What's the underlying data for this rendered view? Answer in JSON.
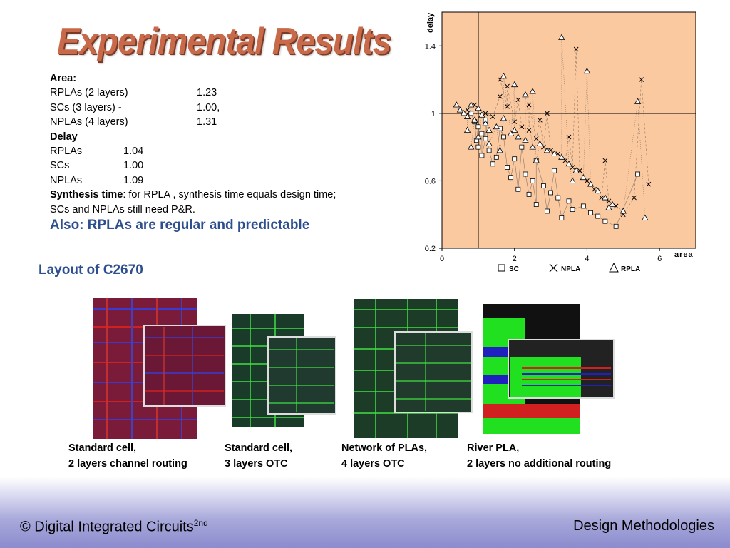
{
  "slide": {
    "title": "Experimental Results",
    "stats": {
      "area_heading": "Area:",
      "area_rows": [
        {
          "label": "RPLAs (2 layers)",
          "value": "1.23"
        },
        {
          "label": "SCs (3 layers) -",
          "value": "1.00,"
        },
        {
          "label": "NPLAs (4 layers)",
          "value": "1.31"
        }
      ],
      "delay_heading": "Delay",
      "delay_rows": [
        {
          "label": "RPLAs",
          "value": "1.04"
        },
        {
          "label": "SCs",
          "value": "1.00"
        },
        {
          "label": "NPLAs",
          "value": "1.09"
        }
      ],
      "synthesis_bold": "Synthesis time",
      "synthesis_rest": ": for RPLA , synthesis time equals design time;",
      "synthesis_line2": "SCs and NPLAs still need P&R."
    },
    "also": "Also: RPLAs are regular and predictable",
    "layout_title": "Layout of C2670",
    "captions": [
      {
        "line1": "Standard cell,",
        "line2": "2 layers channel routing"
      },
      {
        "line1": "Standard cell,",
        "line2": "3 layers OTC"
      },
      {
        "line1": "Network of PLAs,",
        "line2": "4 layers OTC"
      },
      {
        "line1": "River PLA,",
        "line2": "2 layers no additional routing"
      }
    ],
    "footer": {
      "left_text": "© Digital Integrated Circuits",
      "left_sup": "2nd",
      "right_text": "Design Methodologies"
    }
  },
  "chart_data": {
    "type": "scatter",
    "xlabel": "area",
    "ylabel": "delay",
    "xlim": [
      0,
      7
    ],
    "ylim": [
      0.2,
      1.6
    ],
    "xticks": [
      0,
      2,
      4,
      6
    ],
    "yticks": [
      0.2,
      0.6,
      1,
      1.4
    ],
    "xtick_labels": [
      "0",
      "2",
      "4",
      "6"
    ],
    "ytick_labels": [
      "0.2",
      "0.6",
      "1",
      "1.4"
    ],
    "reference_lines": {
      "x": 1,
      "y": 1
    },
    "background": "#fbc9a0",
    "legend": {
      "placement": "bottom",
      "entries": [
        "SC",
        "NPLA",
        "RPLA"
      ]
    },
    "series": [
      {
        "name": "SC",
        "marker": "square",
        "values": [
          [
            0.8,
            1.0
          ],
          [
            0.9,
            0.95
          ],
          [
            1.0,
            0.92
          ],
          [
            1.1,
            0.88
          ],
          [
            1.2,
            0.85
          ],
          [
            1.0,
            0.8
          ],
          [
            1.1,
            0.75
          ],
          [
            1.3,
            0.78
          ],
          [
            1.5,
            0.74
          ],
          [
            1.4,
            0.7
          ],
          [
            1.8,
            0.68
          ],
          [
            2.0,
            0.73
          ],
          [
            1.9,
            0.62
          ],
          [
            2.3,
            0.64
          ],
          [
            2.5,
            0.6
          ],
          [
            2.1,
            0.55
          ],
          [
            2.4,
            0.52
          ],
          [
            2.8,
            0.57
          ],
          [
            3.0,
            0.53
          ],
          [
            3.2,
            0.5
          ],
          [
            2.6,
            0.46
          ],
          [
            3.5,
            0.48
          ],
          [
            3.9,
            0.45
          ],
          [
            3.6,
            0.43
          ],
          [
            4.1,
            0.41
          ],
          [
            4.3,
            0.39
          ],
          [
            2.9,
            0.42
          ],
          [
            3.3,
            0.38
          ],
          [
            4.5,
            0.36
          ],
          [
            4.8,
            0.33
          ],
          [
            1.7,
            0.86
          ],
          [
            1.6,
            0.91
          ],
          [
            2.2,
            0.8
          ],
          [
            2.6,
            0.72
          ],
          [
            3.1,
            0.66
          ],
          [
            5.4,
            0.64
          ],
          [
            1.2,
            0.96
          ],
          [
            0.95,
            0.84
          ]
        ]
      },
      {
        "name": "NPLA",
        "marker": "x",
        "values": [
          [
            0.7,
            1.02
          ],
          [
            0.9,
            1.05
          ],
          [
            1.2,
            1.0
          ],
          [
            1.4,
            0.98
          ],
          [
            1.6,
            1.1
          ],
          [
            1.8,
            1.04
          ],
          [
            2.0,
            0.95
          ],
          [
            2.2,
            0.92
          ],
          [
            2.4,
            0.9
          ],
          [
            2.6,
            0.85
          ],
          [
            2.8,
            0.8
          ],
          [
            3.0,
            0.78
          ],
          [
            3.2,
            0.76
          ],
          [
            3.4,
            0.72
          ],
          [
            3.6,
            0.68
          ],
          [
            3.8,
            0.66
          ],
          [
            4.0,
            0.6
          ],
          [
            4.2,
            0.55
          ],
          [
            4.4,
            0.5
          ],
          [
            4.6,
            0.48
          ],
          [
            4.8,
            0.45
          ],
          [
            5.0,
            0.4
          ],
          [
            5.7,
            0.58
          ],
          [
            5.3,
            0.5
          ],
          [
            3.7,
            1.38
          ],
          [
            5.5,
            1.2
          ],
          [
            1.6,
            1.2
          ],
          [
            1.8,
            1.16
          ],
          [
            2.4,
            1.05
          ],
          [
            2.9,
            1.0
          ],
          [
            3.5,
            0.86
          ],
          [
            4.5,
            0.72
          ],
          [
            2.1,
            1.08
          ],
          [
            2.7,
            0.96
          ]
        ]
      },
      {
        "name": "RPLA",
        "marker": "triangle",
        "values": [
          [
            0.4,
            1.05
          ],
          [
            0.5,
            1.02
          ],
          [
            0.6,
            1.0
          ],
          [
            0.7,
            0.98
          ],
          [
            0.8,
            1.05
          ],
          [
            0.9,
            0.96
          ],
          [
            1.0,
            1.03
          ],
          [
            1.1,
            0.99
          ],
          [
            1.2,
            0.94
          ],
          [
            1.3,
            0.9
          ],
          [
            1.5,
            0.92
          ],
          [
            1.7,
            0.97
          ],
          [
            1.9,
            0.88
          ],
          [
            2.1,
            0.86
          ],
          [
            2.3,
            0.84
          ],
          [
            2.5,
            0.8
          ],
          [
            2.7,
            0.82
          ],
          [
            2.9,
            0.78
          ],
          [
            3.1,
            0.76
          ],
          [
            3.3,
            0.74
          ],
          [
            3.5,
            0.7
          ],
          [
            3.7,
            0.66
          ],
          [
            3.9,
            0.62
          ],
          [
            4.1,
            0.58
          ],
          [
            4.3,
            0.54
          ],
          [
            4.5,
            0.5
          ],
          [
            4.7,
            0.46
          ],
          [
            5.0,
            0.42
          ],
          [
            5.6,
            0.38
          ],
          [
            3.3,
            1.45
          ],
          [
            4.0,
            1.25
          ],
          [
            5.4,
            1.07
          ],
          [
            1.7,
            1.22
          ],
          [
            2.0,
            1.17
          ],
          [
            2.3,
            1.11
          ],
          [
            2.5,
            1.13
          ],
          [
            0.7,
            0.9
          ],
          [
            1.0,
            0.86
          ],
          [
            1.3,
            0.82
          ],
          [
            1.6,
            0.78
          ],
          [
            0.8,
            0.8
          ],
          [
            2.0,
            0.9
          ],
          [
            2.6,
            0.72
          ],
          [
            3.6,
            0.6
          ],
          [
            4.6,
            0.44
          ]
        ]
      }
    ]
  }
}
